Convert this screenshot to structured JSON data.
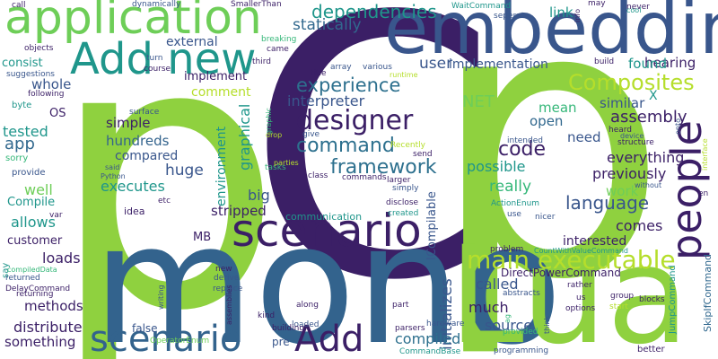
{
  "words": [
    {
      "text": "p",
      "color": "#8fd13f"
    },
    {
      "text": "C",
      "color": "#3b1f66"
    },
    {
      "text": "p",
      "color": "#8fd13f"
    },
    {
      "text": "mono",
      "color": "#33638d"
    },
    {
      "text": "Lua",
      "color": "#8fd13f"
    },
    {
      "text": "embedding",
      "color": "#39568c"
    },
    {
      "text": "application",
      "color": "#6ece58"
    },
    {
      "text": "Add new",
      "color": "#1f968b"
    },
    {
      "text": "scenario",
      "color": "#3b1f66"
    },
    {
      "text": "scenario",
      "color": "#33638d"
    },
    {
      "text": "Add",
      "color": "#3b1f66"
    },
    {
      "text": "people",
      "color": "#3b1f66"
    },
    {
      "text": "designer",
      "color": "#3b1f66"
    },
    {
      "text": "main executable",
      "color": "#b5de2b"
    },
    {
      "text": "command",
      "color": "#2d708e"
    },
    {
      "text": "framework",
      "color": "#2d708e"
    },
    {
      "text": "Composites",
      "color": "#b5de2b"
    },
    {
      "text": "dependencies",
      "color": "#1f968b"
    },
    {
      "text": "experience",
      "color": "#2d708e"
    },
    {
      "text": "language",
      "color": "#39568c"
    },
    {
      "text": "code",
      "color": "#3b1f66"
    },
    {
      "text": "interpreter",
      "color": "#39568c"
    },
    {
      "text": "statically",
      "color": "#31688e"
    },
    {
      "text": "user",
      "color": "#39568c"
    },
    {
      "text": "implementation",
      "color": "#39568c"
    },
    {
      "text": "link",
      "color": "#1f968b"
    },
    {
      "text": "hearing",
      "color": "#3b1f66"
    },
    {
      "text": "found",
      "color": "#1f968b"
    },
    {
      "text": "NET",
      "color": "#6ece58"
    },
    {
      "text": "assembly",
      "color": "#3b1f66"
    },
    {
      "text": "similar",
      "color": "#39568c"
    },
    {
      "text": "mean",
      "color": "#35b779"
    },
    {
      "text": "open",
      "color": "#31688e"
    },
    {
      "text": "need",
      "color": "#39568c"
    },
    {
      "text": "everything",
      "color": "#3b1f66"
    },
    {
      "text": "possible",
      "color": "#1f968b"
    },
    {
      "text": "previously",
      "color": "#3b1f66"
    },
    {
      "text": "really",
      "color": "#35b779"
    },
    {
      "text": "work",
      "color": "#6ece58"
    },
    {
      "text": "comes",
      "color": "#3b1f66"
    },
    {
      "text": "interested",
      "color": "#3b1f66"
    },
    {
      "text": "initializes",
      "color": "#39568c"
    },
    {
      "text": "called",
      "color": "#39568c"
    },
    {
      "text": "much",
      "color": "#3b1f66"
    },
    {
      "text": "source",
      "color": "#39568c"
    },
    {
      "text": "compiled",
      "color": "#2d708e"
    },
    {
      "text": "distribute",
      "color": "#3b1f66"
    },
    {
      "text": "something",
      "color": "#3b1f66"
    },
    {
      "text": "methods",
      "color": "#3b1f66"
    },
    {
      "text": "loads",
      "color": "#3b1f66"
    },
    {
      "text": "customer",
      "color": "#3b1f66"
    },
    {
      "text": "allows",
      "color": "#1f968b"
    },
    {
      "text": "well",
      "color": "#6ece58"
    },
    {
      "text": "Compile",
      "color": "#1f968b"
    },
    {
      "text": "tested",
      "color": "#1f968b"
    },
    {
      "text": "app",
      "color": "#31688e"
    },
    {
      "text": "OS",
      "color": "#3b1f66"
    },
    {
      "text": "whole",
      "color": "#39568c"
    },
    {
      "text": "consist",
      "color": "#1f968b"
    },
    {
      "text": "external",
      "color": "#39568c"
    },
    {
      "text": "implement",
      "color": "#3b1f66"
    },
    {
      "text": "comment",
      "color": "#b5de2b"
    },
    {
      "text": "simple",
      "color": "#3b1f66"
    },
    {
      "text": "hundreds",
      "color": "#33638d"
    },
    {
      "text": "compared",
      "color": "#39568c"
    },
    {
      "text": "executes",
      "color": "#1f968b"
    },
    {
      "text": "huge",
      "color": "#39568c"
    },
    {
      "text": "graphical",
      "color": "#1f968b"
    },
    {
      "text": "environment",
      "color": "#1f968b"
    },
    {
      "text": "big",
      "color": "#39568c"
    },
    {
      "text": "stripped",
      "color": "#3b1f66"
    },
    {
      "text": "communication",
      "color": "#1f968b"
    },
    {
      "text": "idea",
      "color": "#3b1f66"
    },
    {
      "text": "MB",
      "color": "#3b1f66"
    },
    {
      "text": "ICompilable",
      "color": "#39568c"
    },
    {
      "text": "DirectPowerCommand",
      "color": "#3b1f66"
    },
    {
      "text": "JumpCommand",
      "color": "#1f968b"
    },
    {
      "text": "SkipIfCommand",
      "color": "#31688e"
    },
    {
      "text": "pre",
      "color": "#39568c"
    },
    {
      "text": "dynamically",
      "color": "#39568c"
    },
    {
      "text": "SmallerThan",
      "color": "#3b1f66"
    },
    {
      "text": "WaitCommand",
      "color": "#1f968b"
    },
    {
      "text": "breaking",
      "color": "#35b779"
    },
    {
      "text": "array",
      "color": "#39568c"
    },
    {
      "text": "various",
      "color": "#39568c"
    },
    {
      "text": "runtime",
      "color": "#b5de2b"
    },
    {
      "text": "seperate",
      "color": "#39568c"
    },
    {
      "text": "ActionEnum",
      "color": "#1f968b"
    },
    {
      "text": "CountWithValueCommand",
      "color": "#1f968b"
    },
    {
      "text": "OperatorEnum",
      "color": "#6ece58"
    },
    {
      "text": "CommandBase",
      "color": "#1f968b"
    },
    {
      "text": "DelayCommand",
      "color": "#3b1f66"
    },
    {
      "text": "compiledData",
      "color": "#35b779"
    },
    {
      "text": "suggestions",
      "color": "#39568c"
    },
    {
      "text": "objects",
      "color": "#3b1f66"
    },
    {
      "text": "following",
      "color": "#3b1f66"
    },
    {
      "text": "byte",
      "color": "#1f968b"
    },
    {
      "text": "sorry",
      "color": "#35b779"
    },
    {
      "text": "provide",
      "color": "#39568c"
    },
    {
      "text": "var",
      "color": "#3b1f66"
    },
    {
      "text": "say",
      "color": "#1f968b"
    },
    {
      "text": "returned",
      "color": "#39568c"
    },
    {
      "text": "returning",
      "color": "#3b1f66"
    },
    {
      "text": "call",
      "color": "#3b1f66"
    },
    {
      "text": "title",
      "color": "#3b1f66"
    },
    {
      "text": "turn",
      "color": "#39568c"
    },
    {
      "text": "course",
      "color": "#3b1f66"
    },
    {
      "text": "third",
      "color": "#3b1f66"
    },
    {
      "text": "came",
      "color": "#3b1f66"
    },
    {
      "text": "surface",
      "color": "#39568c"
    },
    {
      "text": "give",
      "color": "#39568c"
    },
    {
      "text": "graphic",
      "color": "#35b779"
    },
    {
      "text": "drop",
      "color": "#b5de2b"
    },
    {
      "text": "Recently",
      "color": "#b5de2b"
    },
    {
      "text": "send",
      "color": "#3b1f66"
    },
    {
      "text": "tasks",
      "color": "#35b779"
    },
    {
      "text": "parties",
      "color": "#b5de2b"
    },
    {
      "text": "larger",
      "color": "#3b1f66"
    },
    {
      "text": "class",
      "color": "#3b1f66"
    },
    {
      "text": "commands",
      "color": "#3b1f66"
    },
    {
      "text": "simply",
      "color": "#39568c"
    },
    {
      "text": "disclose",
      "color": "#3b1f66"
    },
    {
      "text": "created",
      "color": "#1f968b"
    },
    {
      "text": "use",
      "color": "#39568c"
    },
    {
      "text": "intended",
      "color": "#39568c"
    },
    {
      "text": "device",
      "color": "#39568c"
    },
    {
      "text": "structure",
      "color": "#3b1f66"
    },
    {
      "text": "heard",
      "color": "#3b1f66"
    },
    {
      "text": "onto",
      "color": "#39568c"
    },
    {
      "text": "interface",
      "color": "#b5de2b"
    },
    {
      "text": "without",
      "color": "#39568c"
    },
    {
      "text": "en",
      "color": "#3b1f66"
    },
    {
      "text": "nicer",
      "color": "#39568c"
    },
    {
      "text": "etc",
      "color": "#3b1f66"
    },
    {
      "text": "said",
      "color": "#39568c"
    },
    {
      "text": "Python",
      "color": "#39568c"
    },
    {
      "text": "never",
      "color": "#3b1f66"
    },
    {
      "text": "info",
      "color": "#3b1f66"
    },
    {
      "text": "may",
      "color": "#3b1f66"
    },
    {
      "text": "cool",
      "color": "#1f968b"
    },
    {
      "text": "build",
      "color": "#3b1f66"
    },
    {
      "text": "problem",
      "color": "#3b1f66"
    },
    {
      "text": "rather",
      "color": "#3b1f66"
    },
    {
      "text": "abstracts",
      "color": "#39568c"
    },
    {
      "text": "us",
      "color": "#3b1f66"
    },
    {
      "text": "options",
      "color": "#3b1f66"
    },
    {
      "text": "group",
      "color": "#3b1f66"
    },
    {
      "text": "start",
      "color": "#b5de2b"
    },
    {
      "text": "blocks",
      "color": "#3b1f66"
    },
    {
      "text": "think",
      "color": "#39568c"
    },
    {
      "text": "provided",
      "color": "#35b779"
    },
    {
      "text": "ag",
      "color": "#35b779"
    },
    {
      "text": "better",
      "color": "#3b1f66"
    },
    {
      "text": "programming",
      "color": "#39568c"
    },
    {
      "text": "hardware",
      "color": "#39568c"
    },
    {
      "text": "parsers",
      "color": "#3b1f66"
    },
    {
      "text": "part",
      "color": "#3b1f66"
    },
    {
      "text": "loaded",
      "color": "#39568c"
    },
    {
      "text": "along",
      "color": "#3b1f66"
    },
    {
      "text": "building",
      "color": "#3b1f66"
    },
    {
      "text": "kind",
      "color": "#3b1f66"
    },
    {
      "text": "new",
      "color": "#3b1f66"
    },
    {
      "text": "derive",
      "color": "#39568c"
    },
    {
      "text": "replace",
      "color": "#39568c"
    },
    {
      "text": "false",
      "color": "#39568c"
    },
    {
      "text": "writing",
      "color": "#39568c"
    },
    {
      "text": "assemblies",
      "color": "#3b1f66"
    },
    {
      "text": "X",
      "color": "#1f968b"
    }
  ]
}
